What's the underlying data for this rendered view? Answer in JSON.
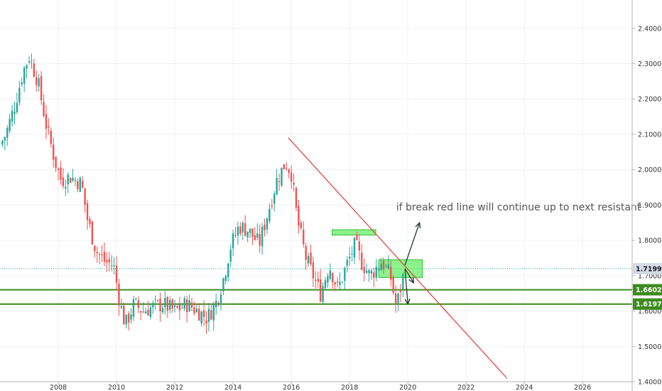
{
  "colors": {
    "up": "#26a69a",
    "down": "#ef5350",
    "trendline": "#e53935",
    "support": "#3d8b1f",
    "zone_fill": "#66ee66",
    "zone_stroke": "#2fbf2f",
    "arrow": "#1d3b2a",
    "grid": "#eef1f5",
    "axis_text": "#333333",
    "annotation_text": "#555555",
    "price_label_bg": "#d5dbe4"
  },
  "chart_data": {
    "type": "candlestick",
    "instrument_hint": "monthly candles",
    "x_range": [
      2006.0,
      2027.7
    ],
    "y_range": [
      1.4,
      2.48
    ],
    "x_ticks": [
      {
        "value": 2008,
        "label": "2008"
      },
      {
        "value": 2010,
        "label": "2010"
      },
      {
        "value": 2012,
        "label": "2012"
      },
      {
        "value": 2014,
        "label": "2014"
      },
      {
        "value": 2016,
        "label": "2016"
      },
      {
        "value": 2018,
        "label": "2018"
      },
      {
        "value": 2020,
        "label": "2020"
      },
      {
        "value": 2022,
        "label": "2022"
      },
      {
        "value": 2024,
        "label": "2024"
      },
      {
        "value": 2026,
        "label": "2026"
      }
    ],
    "y_ticks": [
      {
        "value": 2.4,
        "label": "2.40000"
      },
      {
        "value": 2.3,
        "label": "2.30000"
      },
      {
        "value": 2.2,
        "label": "2.20000"
      },
      {
        "value": 2.1,
        "label": "2.10000"
      },
      {
        "value": 2.0,
        "label": "2.00000"
      },
      {
        "value": 1.9,
        "label": "1.90000"
      },
      {
        "value": 1.8,
        "label": "1.80000"
      },
      {
        "value": 1.7,
        "label": "1.70000"
      },
      {
        "value": 1.6,
        "label": "1.60000"
      },
      {
        "value": 1.5,
        "label": "1.50000"
      },
      {
        "value": 1.4,
        "label": "1.40000"
      }
    ],
    "close_path": [
      [
        2006.0,
        2.07
      ],
      [
        2006.2,
        2.1
      ],
      [
        2006.5,
        2.18
      ],
      [
        2006.8,
        2.28
      ],
      [
        2007.0,
        2.32
      ],
      [
        2007.3,
        2.25
      ],
      [
        2007.6,
        2.12
      ],
      [
        2007.9,
        2.02
      ],
      [
        2008.1,
        1.97
      ],
      [
        2008.4,
        1.98
      ],
      [
        2008.8,
        1.96
      ],
      [
        2009.0,
        1.86
      ],
      [
        2009.3,
        1.77
      ],
      [
        2009.6,
        1.74
      ],
      [
        2009.9,
        1.73
      ],
      [
        2010.1,
        1.63
      ],
      [
        2010.3,
        1.56
      ],
      [
        2010.6,
        1.62
      ],
      [
        2010.9,
        1.6
      ],
      [
        2011.2,
        1.61
      ],
      [
        2011.6,
        1.62
      ],
      [
        2012.0,
        1.6
      ],
      [
        2012.4,
        1.62
      ],
      [
        2012.8,
        1.6
      ],
      [
        2013.1,
        1.58
      ],
      [
        2013.4,
        1.62
      ],
      [
        2013.7,
        1.7
      ],
      [
        2013.9,
        1.78
      ],
      [
        2014.2,
        1.84
      ],
      [
        2014.5,
        1.83
      ],
      [
        2014.9,
        1.79
      ],
      [
        2015.2,
        1.88
      ],
      [
        2015.5,
        1.97
      ],
      [
        2015.8,
        2.02
      ],
      [
        2016.0,
        1.99
      ],
      [
        2016.2,
        1.86
      ],
      [
        2016.5,
        1.75
      ],
      [
        2016.8,
        1.69
      ],
      [
        2017.0,
        1.65
      ],
      [
        2017.3,
        1.73
      ],
      [
        2017.6,
        1.66
      ],
      [
        2017.9,
        1.73
      ],
      [
        2018.2,
        1.79
      ],
      [
        2018.4,
        1.74
      ],
      [
        2018.7,
        1.7
      ],
      [
        2018.9,
        1.72
      ],
      [
        2019.1,
        1.74
      ],
      [
        2019.4,
        1.7
      ],
      [
        2019.6,
        1.61
      ],
      [
        2019.9,
        1.72
      ]
    ],
    "current_price": {
      "value": 1.71998,
      "label": "1.71998"
    },
    "support_levels": [
      {
        "value": 1.66028,
        "label": "1.66028"
      },
      {
        "value": 1.61979,
        "label": "1.61979"
      }
    ],
    "trendline": {
      "from": [
        2015.9,
        2.09
      ],
      "to": [
        2023.4,
        1.41
      ]
    },
    "zones": [
      {
        "x0": 2017.4,
        "x1": 2018.9,
        "y0": 1.815,
        "y1": 1.83
      },
      {
        "x0": 2019.0,
        "x1": 2020.5,
        "y0": 1.695,
        "y1": 1.745
      }
    ],
    "arrows": [
      {
        "from": [
          2019.9,
          1.73
        ],
        "to": [
          2020.4,
          1.85
        ]
      },
      {
        "from": [
          2019.9,
          1.72
        ],
        "to": [
          2020.2,
          1.68
        ]
      },
      {
        "from": [
          2019.9,
          1.72
        ],
        "to": [
          2020.0,
          1.62
        ]
      }
    ],
    "annotation": {
      "text": "if break red line will continue up to next resistant",
      "anchor": [
        2019.6,
        1.885
      ]
    }
  }
}
